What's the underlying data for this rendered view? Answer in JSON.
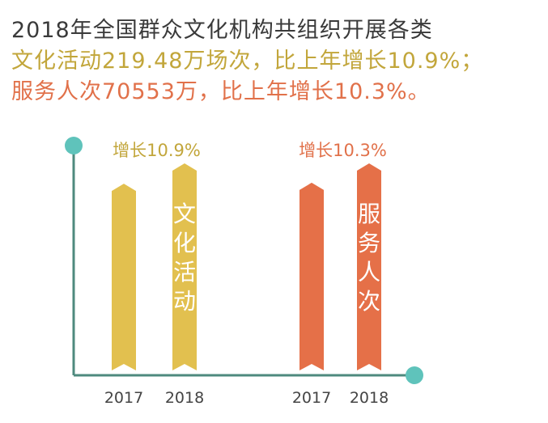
{
  "headline": {
    "line1": "2018年全国群众文化机构共组织开展各类",
    "line2": "文化活动219.48万场次，比上年增长10.9%；",
    "line3": "服务人次70553万，比上年增长10.3%。"
  },
  "colors": {
    "axis": "#4e8a7e",
    "dot": "#5fc3bb",
    "activities": "#e2c04f",
    "visits": "#e57048",
    "title": "#3a3a3a",
    "activities_text": "#c2a63b",
    "visits_text": "#e1714a",
    "bar_label": "#ffffff",
    "year_label": "#444444"
  },
  "chart_data": {
    "type": "bar",
    "groups": [
      {
        "name": "文化活动",
        "growth_label": "增长10.9%",
        "color": "#e2c04f",
        "growth_color": "#c2a63b",
        "bars": [
          {
            "year": "2017",
            "value": 197.9
          },
          {
            "year": "2018",
            "value": 219.48
          }
        ]
      },
      {
        "name": "服务人次",
        "growth_label": "增长10.3%",
        "color": "#e57048",
        "growth_color": "#e1714a",
        "bars": [
          {
            "year": "2017",
            "value": 63964
          },
          {
            "year": "2018",
            "value": 70553
          }
        ]
      }
    ],
    "units": [
      "万场次",
      "万"
    ],
    "axes": "no tick marks or value axis; each group normalized to its 2018 value"
  }
}
